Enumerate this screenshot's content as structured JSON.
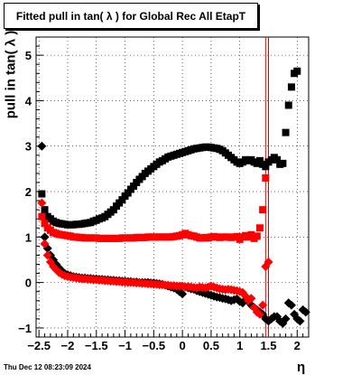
{
  "chart_data": {
    "type": "scatter",
    "title": "Fitted pull in tan( λ ) for Global Rec All EtapT",
    "xlabel": "η",
    "ylabel": "pull in tan( λ )",
    "xlim": [
      -2.55,
      2.2
    ],
    "ylim": [
      -1.2,
      5.4
    ],
    "x_ticks": [
      -2.5,
      -2,
      -1.5,
      -1,
      -0.5,
      0,
      0.5,
      1,
      1.5,
      2
    ],
    "x_tick_labels": [
      "−2.5",
      "−2",
      "−1.5",
      "−1",
      "−0.5",
      "0",
      "0.5",
      "1",
      "1.5",
      "2"
    ],
    "y_ticks": [
      -1,
      0,
      1,
      2,
      3,
      4,
      5
    ],
    "y_tick_labels": [
      "−1",
      "0",
      "1",
      "2",
      "3",
      "4",
      "5"
    ],
    "grid": true,
    "vertical_lines": [
      1.45,
      1.5
    ],
    "vertical_line_color": "#e00000",
    "series": [
      {
        "marker": "square",
        "color": "#000000",
        "x": [
          -2.45,
          -2.4,
          -2.35,
          -2.3,
          -2.25,
          -2.2,
          -2.15,
          -2.1,
          -2.05,
          -2.0,
          -1.95,
          -1.9,
          -1.85,
          -1.8,
          -1.75,
          -1.7,
          -1.65,
          -1.6,
          -1.55,
          -1.5,
          -1.45,
          -1.4,
          -1.35,
          -1.3,
          -1.25,
          -1.2,
          -1.15,
          -1.1,
          -1.05,
          -1.0,
          -0.95,
          -0.9,
          -0.85,
          -0.8,
          -0.75,
          -0.7,
          -0.65,
          -0.6,
          -0.55,
          -0.5,
          -0.45,
          -0.4,
          -0.35,
          -0.3,
          -0.25,
          -0.2,
          -0.15,
          -0.1,
          -0.05,
          0.0,
          0.05,
          0.1,
          0.15,
          0.2,
          0.25,
          0.3,
          0.35,
          0.4,
          0.45,
          0.5,
          0.55,
          0.6,
          0.65,
          0.7,
          0.75,
          0.8,
          0.85,
          0.9,
          0.95,
          1.0,
          1.05,
          1.1,
          1.15,
          1.2,
          1.25,
          1.3,
          1.35,
          1.4,
          1.45,
          1.5,
          1.55,
          1.6,
          1.65,
          1.7,
          1.75,
          1.8,
          1.85,
          1.9,
          1.95,
          2.0
        ],
        "y": [
          1.95,
          1.6,
          1.45,
          1.4,
          1.35,
          1.32,
          1.3,
          1.29,
          1.28,
          1.27,
          1.27,
          1.27,
          1.28,
          1.28,
          1.29,
          1.3,
          1.31,
          1.32,
          1.35,
          1.37,
          1.4,
          1.42,
          1.45,
          1.5,
          1.55,
          1.6,
          1.68,
          1.75,
          1.82,
          1.9,
          1.97,
          2.05,
          2.12,
          2.2,
          2.27,
          2.33,
          2.4,
          2.45,
          2.5,
          2.55,
          2.6,
          2.65,
          2.68,
          2.72,
          2.76,
          2.78,
          2.8,
          2.82,
          2.84,
          2.86,
          2.88,
          2.9,
          2.92,
          2.94,
          2.95,
          2.96,
          2.97,
          2.98,
          2.98,
          2.97,
          2.96,
          2.95,
          2.93,
          2.9,
          2.85,
          2.8,
          2.75,
          2.7,
          2.65,
          2.62,
          2.65,
          2.7,
          2.68,
          2.7,
          2.65,
          2.62,
          2.68,
          2.6,
          2.55,
          2.65,
          2.7,
          2.75,
          2.7,
          2.6,
          2.62,
          3.3,
          3.9,
          4.3,
          4.6,
          4.65
        ]
      },
      {
        "marker": "square",
        "color": "#ff0000",
        "x": [
          -2.45,
          -2.4,
          -2.35,
          -2.3,
          -2.25,
          -2.2,
          -2.15,
          -2.1,
          -2.05,
          -2.0,
          -1.95,
          -1.9,
          -1.85,
          -1.8,
          -1.75,
          -1.7,
          -1.65,
          -1.6,
          -1.55,
          -1.5,
          -1.45,
          -1.4,
          -1.35,
          -1.3,
          -1.25,
          -1.2,
          -1.15,
          -1.1,
          -1.05,
          -1.0,
          -0.95,
          -0.9,
          -0.85,
          -0.8,
          -0.75,
          -0.7,
          -0.65,
          -0.6,
          -0.55,
          -0.5,
          -0.45,
          -0.4,
          -0.35,
          -0.3,
          -0.25,
          -0.2,
          -0.15,
          -0.1,
          -0.05,
          0.0,
          0.05,
          0.1,
          0.15,
          0.2,
          0.25,
          0.3,
          0.35,
          0.4,
          0.45,
          0.5,
          0.55,
          0.6,
          0.65,
          0.7,
          0.75,
          0.8,
          0.85,
          0.9,
          0.95,
          1.0,
          1.05,
          1.1,
          1.15,
          1.2,
          1.25,
          1.3,
          1.35,
          1.4,
          1.45
        ],
        "y": [
          1.45,
          1.3,
          1.2,
          1.15,
          1.1,
          1.08,
          1.06,
          1.05,
          1.04,
          1.03,
          1.02,
          1.0,
          1.0,
          0.99,
          0.99,
          0.98,
          0.98,
          0.98,
          0.98,
          0.98,
          0.97,
          0.97,
          0.97,
          0.97,
          0.97,
          0.97,
          0.97,
          0.97,
          0.98,
          0.98,
          0.98,
          0.98,
          0.98,
          0.99,
          0.99,
          0.99,
          0.99,
          1.0,
          1.0,
          1.0,
          1.0,
          1.0,
          1.0,
          1.0,
          1.0,
          1.0,
          1.01,
          1.02,
          1.03,
          1.05,
          1.08,
          1.05,
          1.03,
          1.02,
          1.0,
          0.98,
          0.98,
          0.99,
          0.98,
          1.0,
          1.01,
          1.0,
          0.99,
          1.0,
          1.0,
          1.0,
          0.99,
          1.0,
          1.01,
          0.95,
          1.0,
          1.03,
          1.0,
          1.05,
          0.97,
          1.02,
          1.2,
          1.6,
          2.3
        ]
      },
      {
        "marker": "diamond",
        "color": "#000000",
        "x": [
          -2.45,
          -2.4,
          -2.35,
          -2.3,
          -2.25,
          -2.2,
          -2.15,
          -2.1,
          -2.05,
          -2.0,
          -1.95,
          -1.9,
          -1.85,
          -1.8,
          -1.75,
          -1.7,
          -1.65,
          -1.6,
          -1.55,
          -1.5,
          -1.45,
          -1.4,
          -1.35,
          -1.3,
          -1.25,
          -1.2,
          -1.15,
          -1.1,
          -1.05,
          -1.0,
          -0.95,
          -0.9,
          -0.85,
          -0.8,
          -0.75,
          -0.7,
          -0.65,
          -0.6,
          -0.55,
          -0.5,
          -0.45,
          -0.4,
          -0.35,
          -0.3,
          -0.25,
          -0.2,
          -0.15,
          -0.1,
          -0.05,
          0.0,
          0.05,
          0.1,
          0.15,
          0.2,
          0.25,
          0.3,
          0.35,
          0.4,
          0.45,
          0.5,
          0.55,
          0.6,
          0.65,
          0.7,
          0.75,
          0.8,
          0.85,
          0.9,
          0.95,
          1.0,
          1.05,
          1.1,
          1.15,
          1.2,
          1.25,
          1.3,
          1.35,
          1.4,
          1.45,
          1.5,
          1.55,
          1.6,
          1.65,
          1.7,
          1.75,
          1.8,
          1.85,
          1.9,
          1.95,
          2.0,
          2.05,
          2.1,
          2.15
        ],
        "y": [
          3.0,
          1.0,
          0.75,
          0.6,
          0.5,
          0.4,
          0.32,
          0.25,
          0.2,
          0.17,
          0.15,
          0.13,
          0.12,
          0.11,
          0.1,
          0.1,
          0.09,
          0.09,
          0.08,
          0.08,
          0.07,
          0.07,
          0.06,
          0.06,
          0.05,
          0.05,
          0.04,
          0.04,
          0.03,
          0.03,
          0.02,
          0.02,
          0.01,
          0.01,
          0.0,
          0.0,
          0.0,
          0.0,
          -0.01,
          -0.01,
          -0.02,
          -0.03,
          -0.04,
          -0.06,
          -0.08,
          -0.1,
          -0.12,
          -0.15,
          -0.2,
          -0.25,
          -0.1,
          -0.12,
          -0.14,
          -0.15,
          -0.18,
          -0.2,
          -0.22,
          -0.24,
          -0.26,
          -0.28,
          -0.3,
          -0.32,
          -0.33,
          -0.35,
          -0.36,
          -0.38,
          -0.4,
          -0.38,
          -0.36,
          -0.42,
          -0.45,
          -0.38,
          -0.42,
          -0.5,
          -0.55,
          -0.6,
          -0.65,
          -0.7,
          -0.8,
          -0.85,
          -0.8,
          -0.75,
          -0.75,
          -0.85,
          -0.9,
          -0.8,
          -0.45,
          -0.5,
          -0.7,
          -0.8,
          -0.85,
          -0.6,
          -0.65
        ]
      },
      {
        "marker": "diamond",
        "color": "#ff0000",
        "x": [
          -2.45,
          -2.4,
          -2.35,
          -2.3,
          -2.25,
          -2.2,
          -2.15,
          -2.1,
          -2.05,
          -2.0,
          -1.95,
          -1.9,
          -1.85,
          -1.8,
          -1.75,
          -1.7,
          -1.65,
          -1.6,
          -1.55,
          -1.5,
          -1.45,
          -1.4,
          -1.35,
          -1.3,
          -1.25,
          -1.2,
          -1.15,
          -1.1,
          -1.05,
          -1.0,
          -0.95,
          -0.9,
          -0.85,
          -0.8,
          -0.75,
          -0.7,
          -0.65,
          -0.6,
          -0.55,
          -0.5,
          -0.45,
          -0.4,
          -0.35,
          -0.3,
          -0.25,
          -0.2,
          -0.15,
          -0.1,
          -0.05,
          0.0,
          0.05,
          0.1,
          0.15,
          0.2,
          0.25,
          0.3,
          0.35,
          0.4,
          0.45,
          0.5,
          0.55,
          0.6,
          0.65,
          0.7,
          0.75,
          0.8,
          0.85,
          0.9,
          0.95,
          1.0,
          1.05,
          1.1,
          1.15,
          1.2,
          1.25,
          1.3,
          1.35,
          1.4,
          1.45,
          1.5
        ],
        "y": [
          1.75,
          0.85,
          0.6,
          0.45,
          0.35,
          0.28,
          0.22,
          0.18,
          0.15,
          0.13,
          0.12,
          0.11,
          0.1,
          0.09,
          0.08,
          0.08,
          0.07,
          0.07,
          0.06,
          0.06,
          0.05,
          0.05,
          0.04,
          0.04,
          0.03,
          0.03,
          0.02,
          0.02,
          0.01,
          0.01,
          0.0,
          0.0,
          0.0,
          -0.01,
          -0.01,
          -0.02,
          -0.02,
          -0.03,
          -0.03,
          -0.04,
          -0.04,
          -0.05,
          -0.05,
          -0.06,
          -0.06,
          -0.07,
          -0.07,
          -0.08,
          -0.08,
          -0.08,
          -0.1,
          -0.09,
          -0.1,
          -0.11,
          -0.12,
          -0.1,
          -0.11,
          -0.12,
          -0.1,
          -0.08,
          -0.1,
          -0.12,
          -0.14,
          -0.15,
          -0.16,
          -0.15,
          -0.16,
          -0.17,
          -0.18,
          -0.2,
          -0.22,
          -0.3,
          -0.4,
          -0.35,
          -0.55,
          -0.65,
          -0.7,
          -0.5,
          0.35,
          0.45
        ]
      }
    ]
  },
  "footer": {
    "date": "Thu Dec 12 08:23:09 2024"
  }
}
